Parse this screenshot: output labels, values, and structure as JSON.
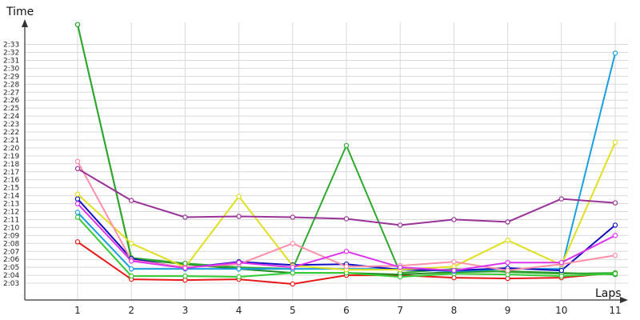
{
  "chart_data": {
    "type": "line",
    "title": "",
    "xlabel": "Laps",
    "ylabel": "Time",
    "x": [
      1,
      2,
      3,
      4,
      5,
      6,
      7,
      8,
      9,
      10,
      11
    ],
    "ylim": [
      122,
      154
    ],
    "y_ticks": [
      123,
      124,
      125,
      126,
      127,
      128,
      129,
      130,
      131,
      132,
      133,
      134,
      135,
      136,
      137,
      138,
      139,
      140,
      141,
      142,
      143,
      144,
      145,
      146,
      147,
      148,
      149,
      150,
      151,
      152,
      153
    ],
    "y_tick_labels": [
      "2:03",
      "2:04",
      "2:05",
      "2:06",
      "2:07",
      "2:08",
      "2:09",
      "2:10",
      "2:11",
      "2:12",
      "2:13",
      "2:14",
      "2:15",
      "2:16",
      "2:17",
      "2:18",
      "2:19",
      "2:20",
      "2:21",
      "2:22",
      "2:23",
      "2:24",
      "2:25",
      "2:26",
      "2:27",
      "2:28",
      "2:29",
      "2:30",
      "2:31",
      "2:32",
      "2:33"
    ],
    "grid": true,
    "series": [
      {
        "color": "#e81818",
        "values": [
          128.2,
          123.5,
          123.4,
          123.5,
          122.9,
          124.0,
          124.0,
          123.7,
          123.6,
          123.7,
          124.3
        ]
      },
      {
        "color": "#228b22",
        "values": [
          155.5,
          126.1,
          125.4,
          124.8,
          124.3,
          124.3,
          124.1,
          124.4,
          124.5,
          124.3,
          124.1
        ]
      },
      {
        "color": "#2ea82e",
        "values": [
          155.5,
          126.2,
          125.5,
          125.0,
          124.8,
          140.3,
          124.3,
          124.8,
          124.4,
          124.2,
          124.3
        ]
      },
      {
        "color": "#33cc33",
        "values": [
          131.3,
          123.9,
          123.9,
          123.8,
          124.3,
          124.3,
          123.8,
          124.2,
          124.1,
          123.9,
          124.2
        ]
      },
      {
        "color": "#1a9fe0",
        "values": [
          131.9,
          124.8,
          124.8,
          124.8,
          124.8,
          124.8,
          124.8,
          124.5,
          124.8,
          124.8,
          151.9
        ]
      },
      {
        "color": "#1010c0",
        "values": [
          133.6,
          126.1,
          124.9,
          125.7,
          125.3,
          125.4,
          124.7,
          124.6,
          124.9,
          124.6,
          130.3
        ]
      },
      {
        "color": "#e0e020",
        "values": [
          134.2,
          128.0,
          125.0,
          133.9,
          125.2,
          124.7,
          124.7,
          125.1,
          128.4,
          125.3,
          140.7
        ]
      },
      {
        "color": "#ff8fa8",
        "values": [
          138.3,
          125.9,
          125.0,
          125.4,
          128.0,
          125.1,
          125.2,
          125.7,
          124.6,
          125.4,
          126.5
        ]
      },
      {
        "color": "#dd33ee",
        "values": [
          133.0,
          125.8,
          124.9,
          125.6,
          125.0,
          127.0,
          125.0,
          124.6,
          125.6,
          125.6,
          129.0
        ]
      },
      {
        "color": "#993399",
        "values": [
          137.4,
          133.4,
          131.3,
          131.4,
          131.3,
          131.1,
          130.3,
          131.0,
          130.7,
          133.6,
          133.1
        ]
      }
    ]
  }
}
